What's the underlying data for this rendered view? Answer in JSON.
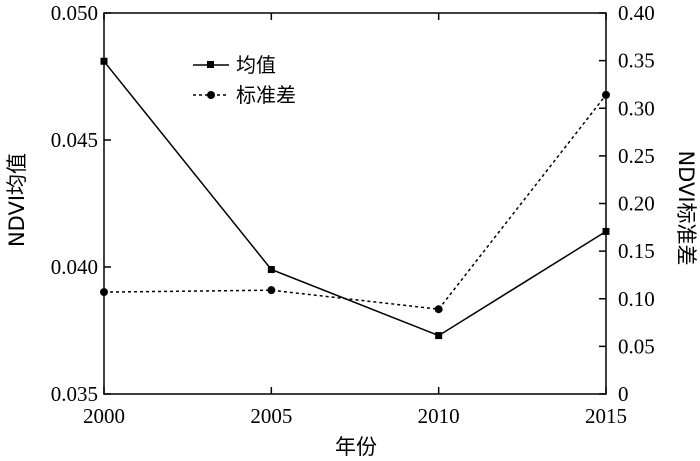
{
  "chart_data": {
    "type": "line",
    "title": "",
    "xlabel": "年份",
    "ylabel_left": "NDVI均值",
    "ylabel_right": "NDVI标准差",
    "x": [
      2000,
      2005,
      2010,
      2015
    ],
    "x_ticks": [
      "2000",
      "2005",
      "2010",
      "2015"
    ],
    "xlim": [
      2000,
      2015
    ],
    "ylim_left": [
      0.035,
      0.05
    ],
    "ylim_right": [
      0,
      0.4
    ],
    "y_ticks_left": [
      "0.035",
      "0.040",
      "0.045",
      "0.050"
    ],
    "y_ticks_right": [
      "0",
      "0.05",
      "0.10",
      "0.15",
      "0.20",
      "0.25",
      "0.30",
      "0.35",
      "0.40"
    ],
    "grid": false,
    "legend_position": "top-left",
    "series": [
      {
        "name": "均值",
        "axis": "left",
        "marker": "square",
        "line": "solid",
        "values": [
          0.0481,
          0.0399,
          0.0373,
          0.0414
        ]
      },
      {
        "name": "标准差",
        "axis": "right",
        "marker": "circle",
        "line": "dashed",
        "values": [
          0.107,
          0.109,
          0.089,
          0.314
        ]
      }
    ]
  }
}
